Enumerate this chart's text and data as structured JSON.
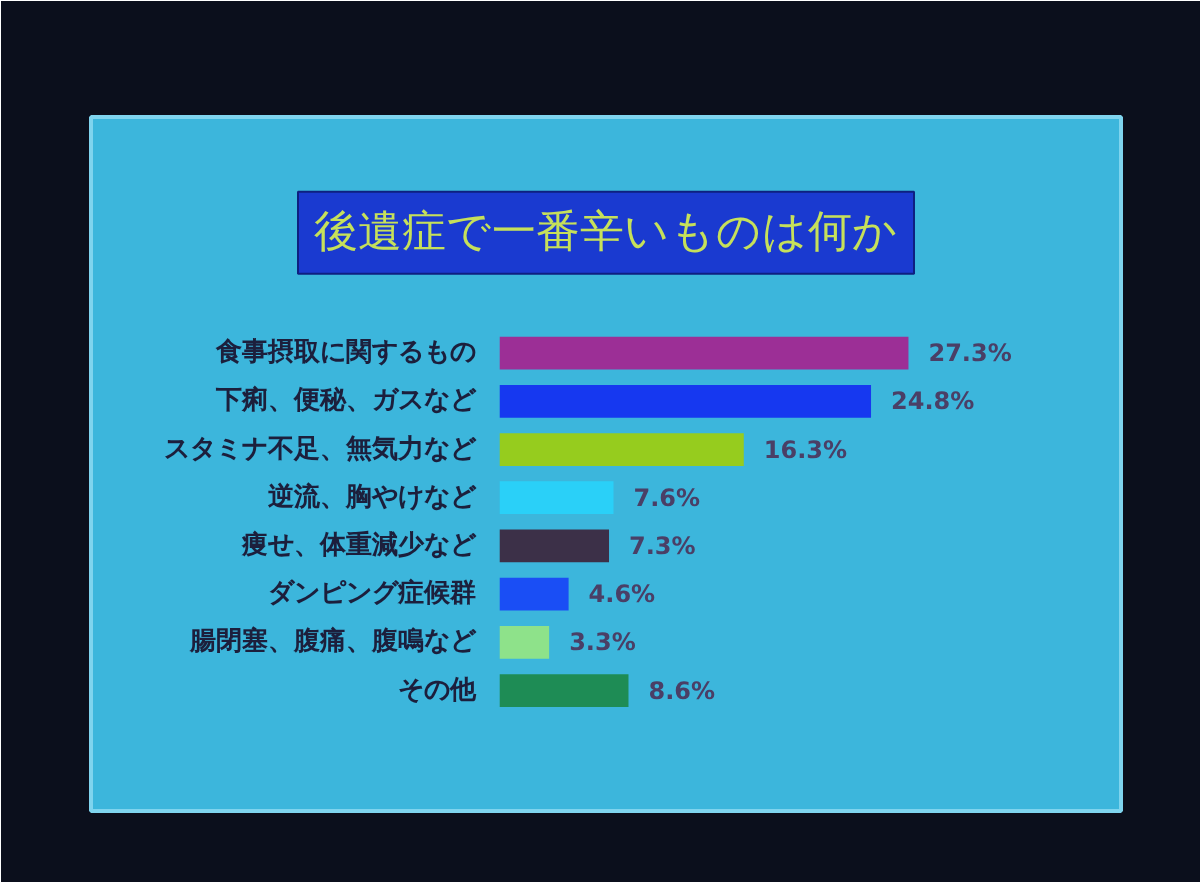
{
  "chart_data": {
    "type": "bar",
    "orientation": "horizontal",
    "title": "後遺症で一番辛いものは何か",
    "categories": [
      "食事摂取に関するもの",
      "下痢、便秘、ガスなど",
      "スタミナ不足、無気力など",
      "逆流、胸やけなど",
      "痩せ、体重減少など",
      "ダンピング症候群",
      "腸閉塞、腹痛、腹鳴など",
      "その他"
    ],
    "values": [
      27.3,
      24.8,
      16.3,
      7.6,
      7.3,
      4.6,
      3.3,
      8.6
    ],
    "colors": [
      "#9c2f96",
      "#1638f0",
      "#96cc1e",
      "#2ad0f8",
      "#3c3048",
      "#1a4ef5",
      "#8ee28a",
      "#1e8c55"
    ],
    "value_labels": [
      "27.3%",
      "24.8%",
      "16.3%",
      "7.6%",
      "7.3%",
      "4.6%",
      "3.3%",
      "8.6%"
    ]
  }
}
